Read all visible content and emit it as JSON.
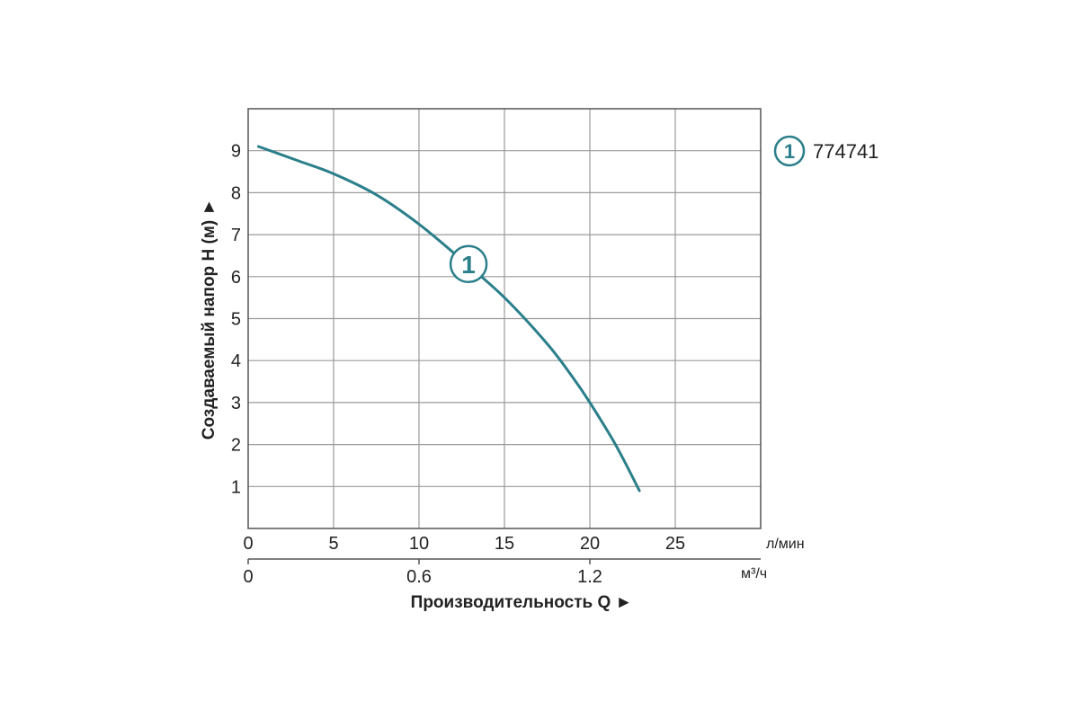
{
  "chart_data": {
    "type": "line",
    "x_unit_primary": "л/мин",
    "x_unit_secondary": "м³/ч",
    "xlabel": "Производительность Q ►",
    "ylabel": "Создаваемый напор H (м) ►",
    "xlim": [
      0,
      30
    ],
    "ylim": [
      0,
      10
    ],
    "x_ticks": [
      0,
      5,
      10,
      15,
      20,
      25
    ],
    "x_ticks_secondary": [
      {
        "label": "0",
        "lpm": 0
      },
      {
        "label": "0.6",
        "lpm": 10
      },
      {
        "label": "1.2",
        "lpm": 20
      }
    ],
    "y_ticks": [
      1,
      2,
      3,
      4,
      5,
      6,
      7,
      8,
      9
    ],
    "grid": true,
    "legend_position": "right",
    "series": [
      {
        "marker": "1",
        "name": "774741",
        "color": "#2b7f8a",
        "x": [
          0.6,
          3,
          5,
          7.5,
          10,
          12.5,
          15,
          17.5,
          19,
          20,
          21.5,
          22.9
        ],
        "y": [
          9.1,
          8.75,
          8.45,
          7.95,
          7.25,
          6.4,
          5.5,
          4.4,
          3.6,
          3.0,
          2.0,
          0.9
        ]
      }
    ],
    "curve_marker_at": {
      "x": 12.9,
      "y": 6.3
    }
  }
}
